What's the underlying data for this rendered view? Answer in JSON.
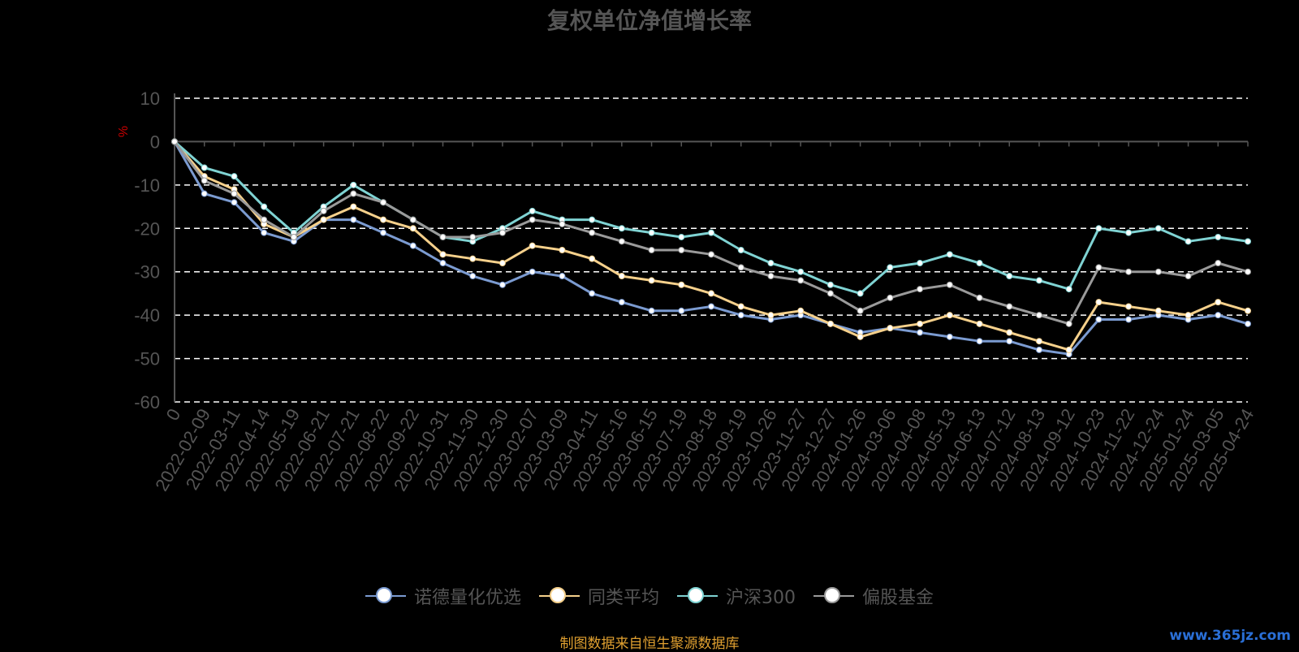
{
  "title": "复权单位净值增长率",
  "source_note": "制图数据来自恒生聚源数据库",
  "watermark": "www.365jz.com",
  "chart_data": {
    "type": "line",
    "title": "复权单位净值增长率",
    "ylabel": "%",
    "ylim": [
      -60,
      10
    ],
    "yticks": [
      10,
      0,
      -10,
      -20,
      -30,
      -40,
      -50,
      -60
    ],
    "grid": true,
    "legend_position": "bottom",
    "x_range": [
      "2022-01-07",
      "2025-04-24"
    ],
    "categories": [
      "0",
      "2022-02-09",
      "2022-03-11",
      "2022-04-14",
      "2022-05-19",
      "2022-06-21",
      "2022-07-21",
      "2022-08-22",
      "2022-09-22",
      "2022-10-31",
      "2022-11-30",
      "2022-12-30",
      "2023-02-07",
      "2023-03-09",
      "2023-04-11",
      "2023-05-16",
      "2023-06-15",
      "2023-07-19",
      "2023-08-18",
      "2023-09-19",
      "2023-10-26",
      "2023-11-27",
      "2023-12-27",
      "2024-01-26",
      "2024-03-06",
      "2024-04-08",
      "2024-05-13",
      "2024-06-13",
      "2024-07-12",
      "2024-08-13",
      "2024-09-12",
      "2024-10-23",
      "2024-11-22",
      "2024-12-24",
      "2025-01-24",
      "2025-03-05",
      "2025-04-24"
    ],
    "series": [
      {
        "name": "诺德量化优选",
        "color": "#7b9bd1",
        "values": [
          0,
          -12,
          -14,
          -21,
          -23,
          -18,
          -18,
          -21,
          -24,
          -28,
          -31,
          -33,
          -30,
          -31,
          -35,
          -37,
          -39,
          -39,
          -38,
          -40,
          -41,
          -40,
          -42,
          -44,
          -43,
          -44,
          -45,
          -46,
          -46,
          -48,
          -49,
          -41,
          -41,
          -40,
          -41,
          -40,
          -42
        ]
      },
      {
        "name": "同类平均",
        "color": "#f5d08b",
        "values": [
          0,
          -8,
          -11,
          -19,
          -22,
          -18,
          -15,
          -18,
          -20,
          -26,
          -27,
          -28,
          -24,
          -25,
          -27,
          -31,
          -32,
          -33,
          -35,
          -38,
          -40,
          -39,
          -42,
          -45,
          -43,
          -42,
          -40,
          -42,
          -44,
          -46,
          -48,
          -37,
          -38,
          -39,
          -40,
          -37,
          -39
        ]
      },
      {
        "name": "沪深300",
        "color": "#7fd3d3",
        "values": [
          0,
          -6,
          -8,
          -15,
          -21,
          -15,
          -10,
          -14,
          -18,
          -22,
          -23,
          -20,
          -16,
          -18,
          -18,
          -20,
          -21,
          -22,
          -21,
          -25,
          -28,
          -30,
          -33,
          -35,
          -29,
          -28,
          -26,
          -28,
          -31,
          -32,
          -34,
          -20,
          -21,
          -20,
          -23,
          -22,
          -23
        ]
      },
      {
        "name": "偏股基金",
        "color": "#9a9a9a",
        "values": [
          0,
          -9,
          -12,
          -18,
          -22,
          -16,
          -12,
          -14,
          -18,
          -22,
          -22,
          -21,
          -18,
          -19,
          -21,
          -23,
          -25,
          -25,
          -26,
          -29,
          -31,
          -32,
          -35,
          -39,
          -36,
          -34,
          -33,
          -36,
          -38,
          -40,
          -42,
          -29,
          -30,
          -30,
          -31,
          -28,
          -30
        ]
      }
    ]
  }
}
